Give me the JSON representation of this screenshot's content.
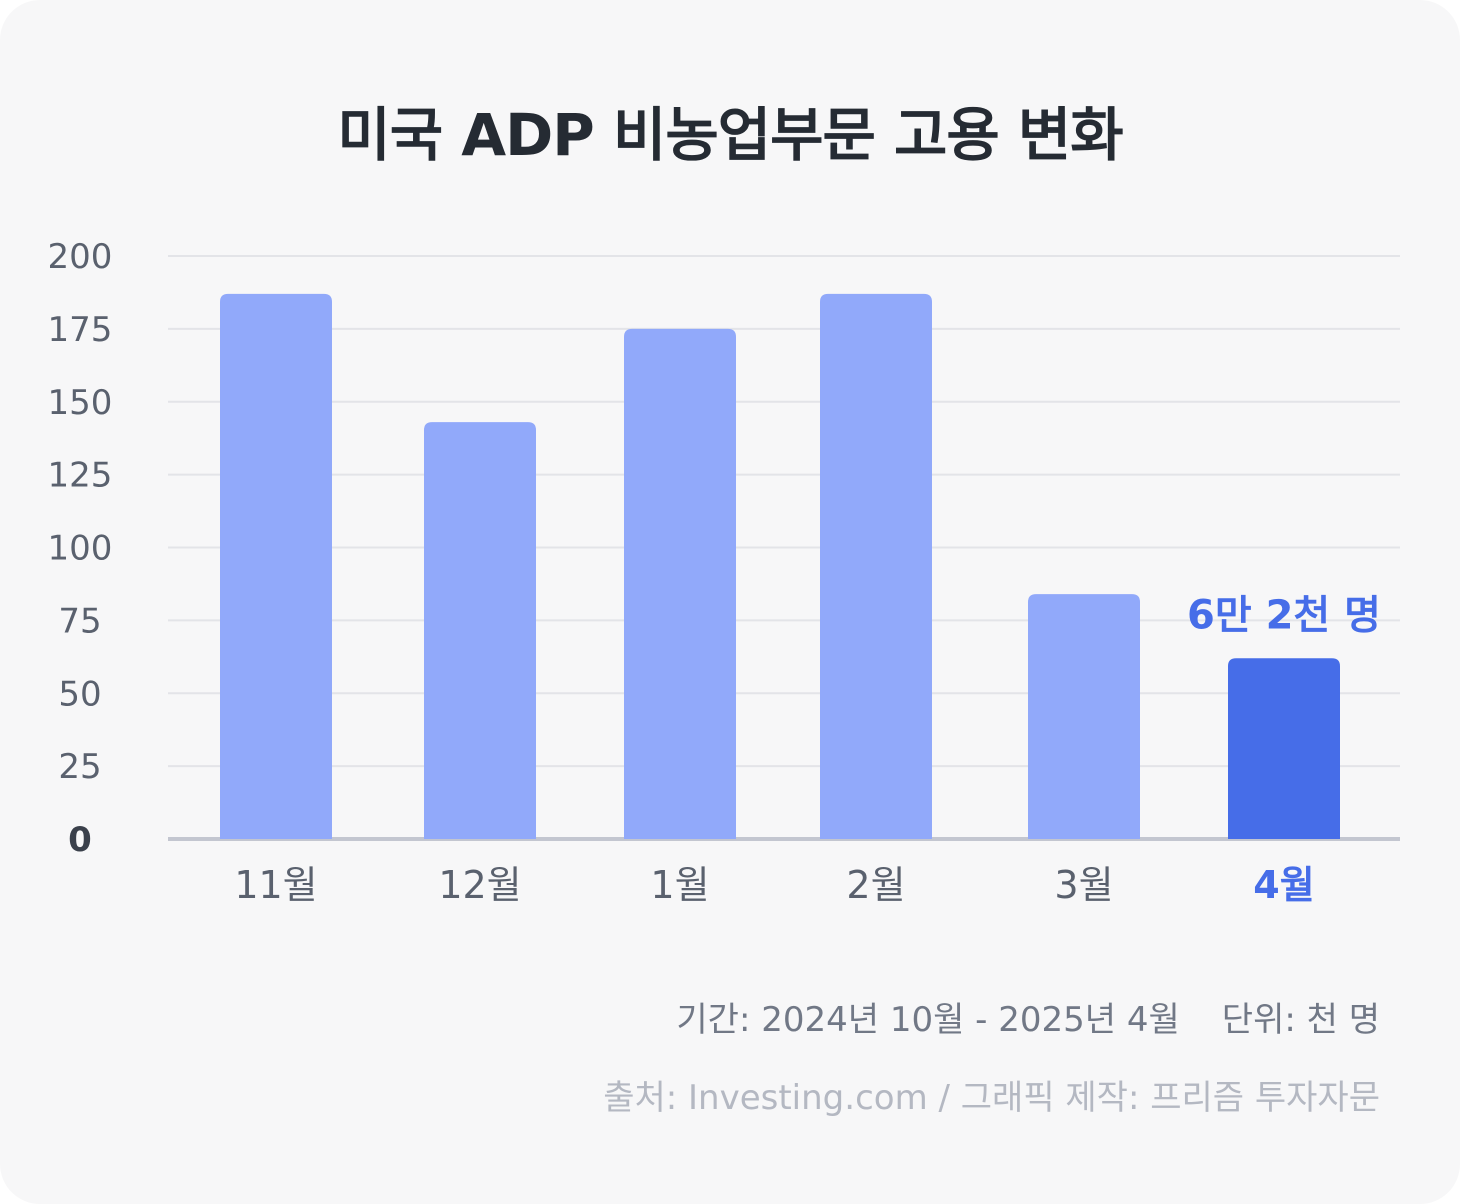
{
  "title": "미국 ADP 비농업부문 고용 변화",
  "chart_data": {
    "type": "bar",
    "categories": [
      "11월",
      "12월",
      "1월",
      "2월",
      "3월",
      "4월"
    ],
    "values": [
      187,
      143,
      175,
      187,
      84,
      62
    ],
    "highlight_index": 5,
    "highlight_label": "6만 2천 명",
    "ylim": [
      0,
      200
    ],
    "yticks": [
      0,
      25,
      50,
      75,
      100,
      125,
      150,
      175,
      200
    ],
    "grid": true,
    "colors": {
      "bar": "#91a9fa",
      "highlight_bar": "#466de8",
      "axis_label": "#5a616e",
      "zero_label": "#3a404b",
      "baseline": "#c3c6d0",
      "grid": "#e3e4e8"
    }
  },
  "footer": {
    "period": "기간: 2024년 10월 - 2025년 4월",
    "unit": "단위: 천 명",
    "source": "출처: Investing.com / 그래픽 제작: 프리즘 투자자문"
  }
}
